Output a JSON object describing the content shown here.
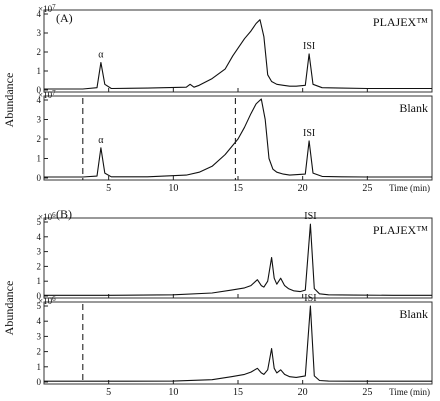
{
  "figure": {
    "ylabel": "Abundance",
    "xlabel": "Time (min)",
    "superscript_prefix": "×10"
  },
  "chart_data": [
    {
      "type": "line",
      "group": "(A)",
      "name": "PLAJEX™",
      "exponent": "7",
      "x_range": [
        0,
        30
      ],
      "y_range": [
        0,
        4
      ],
      "x_ticks": [
        5,
        10,
        15,
        20,
        25
      ],
      "y_ticks": [
        0,
        1,
        2,
        3,
        4
      ],
      "x_tick_labels_shown": false,
      "dashed_lines_x": [],
      "peaks": [
        {
          "label": "α",
          "x": 4.4,
          "y": 1.45
        },
        {
          "label": "ISI",
          "x": 20.5,
          "y": 1.9
        }
      ],
      "series": [
        {
          "x": [
            0,
            3,
            4.1,
            4.4,
            4.7,
            5.2,
            8,
            11,
            11.3,
            11.6,
            12,
            13,
            14,
            14.6,
            15,
            15.5,
            16,
            16.4,
            16.7,
            17,
            17.3,
            17.6,
            18,
            18.5,
            19,
            19.5,
            20.2,
            20.5,
            20.8,
            21.5,
            23,
            25,
            27,
            30
          ],
          "y": [
            0.05,
            0.05,
            0.12,
            1.45,
            0.3,
            0.08,
            0.1,
            0.15,
            0.3,
            0.15,
            0.25,
            0.6,
            1.1,
            1.8,
            2.2,
            2.7,
            3.1,
            3.5,
            3.7,
            2.8,
            0.8,
            0.45,
            0.3,
            0.25,
            0.2,
            0.2,
            0.25,
            1.9,
            0.3,
            0.12,
            0.1,
            0.08,
            0.08,
            0.08
          ]
        }
      ]
    },
    {
      "type": "line",
      "group": "(A)",
      "name": "Blank",
      "exponent": "7",
      "x_range": [
        0,
        30
      ],
      "y_range": [
        0,
        4
      ],
      "x_ticks": [
        5,
        10,
        15,
        20,
        25
      ],
      "y_ticks": [
        0,
        1,
        2,
        3,
        4
      ],
      "x_tick_labels": [
        "5",
        "10",
        "15",
        "20",
        "25"
      ],
      "x_tick_labels_shown": true,
      "dashed_lines_x": [
        3.0,
        14.8
      ],
      "peaks": [
        {
          "label": "α",
          "x": 4.4,
          "y": 1.55
        },
        {
          "label": "ISI",
          "x": 20.5,
          "y": 1.9
        }
      ],
      "series": [
        {
          "x": [
            0,
            3,
            4.1,
            4.4,
            4.7,
            5.2,
            8,
            11,
            12,
            13,
            14,
            15,
            15.5,
            16,
            16.4,
            16.8,
            17.1,
            17.4,
            17.7,
            18,
            18.5,
            19,
            20.2,
            20.5,
            20.8,
            21.5,
            23,
            25,
            27,
            30
          ],
          "y": [
            0.05,
            0.05,
            0.1,
            1.55,
            0.25,
            0.06,
            0.06,
            0.15,
            0.3,
            0.6,
            1.2,
            2.0,
            2.6,
            3.3,
            3.8,
            4.05,
            3.0,
            1.0,
            0.45,
            0.3,
            0.2,
            0.15,
            0.2,
            1.9,
            0.25,
            0.08,
            0.06,
            0.05,
            0.05,
            0.05
          ]
        }
      ]
    },
    {
      "type": "line",
      "group": "(B)",
      "name": "PLAJEX™",
      "exponent": "6",
      "x_range": [
        0,
        30
      ],
      "y_range": [
        0,
        5
      ],
      "x_ticks": [
        5,
        10,
        15,
        20,
        25
      ],
      "y_ticks": [
        0,
        1,
        2,
        3,
        4,
        5
      ],
      "x_tick_labels_shown": false,
      "dashed_lines_x": [],
      "peaks": [
        {
          "label": "ISI",
          "x": 20.6,
          "y": 4.85
        }
      ],
      "series": [
        {
          "x": [
            0,
            5,
            10,
            13,
            14.5,
            15.5,
            16,
            16.5,
            16.8,
            17.0,
            17.3,
            17.6,
            17.8,
            18.0,
            18.3,
            18.6,
            18.9,
            19.3,
            19.8,
            20.2,
            20.6,
            20.9,
            21.3,
            22,
            24,
            27,
            30
          ],
          "y": [
            0.05,
            0.05,
            0.08,
            0.2,
            0.4,
            0.55,
            0.7,
            1.1,
            0.7,
            0.6,
            1.0,
            2.6,
            1.2,
            0.8,
            1.2,
            0.7,
            0.5,
            0.35,
            0.3,
            0.4,
            4.85,
            0.5,
            0.15,
            0.08,
            0.06,
            0.05,
            0.05
          ]
        }
      ]
    },
    {
      "type": "line",
      "group": "(B)",
      "name": "Blank",
      "exponent": "6",
      "x_range": [
        0,
        30
      ],
      "y_range": [
        0,
        5
      ],
      "x_ticks": [
        5,
        10,
        15,
        20,
        25
      ],
      "y_ticks": [
        0,
        1,
        2,
        3,
        4,
        5
      ],
      "x_tick_labels": [
        "5",
        "10",
        "15",
        "20",
        "25"
      ],
      "x_tick_labels_shown": true,
      "dashed_lines_x": [
        3.0
      ],
      "peaks": [
        {
          "label": "ISI",
          "x": 20.6,
          "y": 5.0
        }
      ],
      "series": [
        {
          "x": [
            0,
            5,
            10,
            13,
            14.5,
            15.5,
            16,
            16.5,
            16.8,
            17.0,
            17.3,
            17.6,
            17.8,
            18.0,
            18.3,
            18.6,
            19,
            19.5,
            20.2,
            20.6,
            20.9,
            21.3,
            22,
            24,
            27,
            30
          ],
          "y": [
            0.05,
            0.05,
            0.06,
            0.15,
            0.35,
            0.5,
            0.65,
            0.9,
            0.6,
            0.5,
            0.8,
            2.2,
            0.9,
            0.6,
            0.8,
            0.5,
            0.35,
            0.3,
            0.4,
            5.0,
            0.4,
            0.1,
            0.06,
            0.05,
            0.05,
            0.05
          ]
        }
      ]
    }
  ]
}
